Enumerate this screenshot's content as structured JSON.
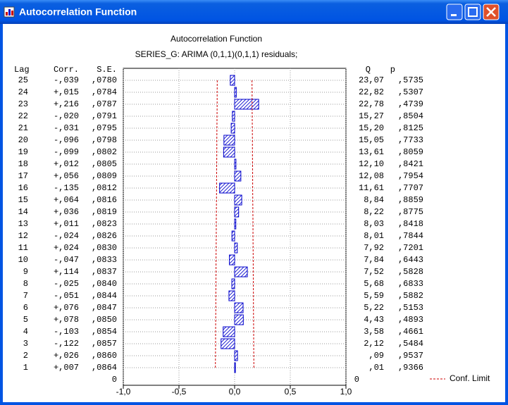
{
  "window": {
    "title": "Autocorrelation Function"
  },
  "chart_data": {
    "type": "bar",
    "orientation": "horizontal",
    "title": "Autocorrelation Function",
    "subtitle": "SERIES_G: ARIMA (0,1,1)(0,1,1) residuals;",
    "column_headers": {
      "lag": "Lag",
      "corr": "Corr.",
      "se": "S.E.",
      "q": "Q",
      "p": "p"
    },
    "x": [
      1,
      2,
      3,
      4,
      5,
      6,
      7,
      8,
      9,
      10,
      11,
      12,
      13,
      14,
      15,
      16,
      17,
      18,
      19,
      20,
      21,
      22,
      23,
      24,
      25
    ],
    "series": [
      {
        "color": "#0000cc",
        "values": [
          0.007,
          0.026,
          -0.122,
          -0.103,
          0.078,
          0.076,
          -0.051,
          -0.025,
          0.114,
          -0.047,
          0.024,
          -0.024,
          0.011,
          0.036,
          0.064,
          -0.135,
          0.056,
          0.012,
          -0.099,
          -0.096,
          -0.031,
          -0.02,
          0.216,
          0.015,
          -0.039
        ],
        "value_labels": [
          "+,007",
          "+,026",
          "-,122",
          "-,103",
          "+,078",
          "+,076",
          "-,051",
          "-,025",
          "+,114",
          "-,047",
          "+,024",
          "-,024",
          "+,011",
          "+,036",
          "+,064",
          "-,135",
          "+,056",
          "+,012",
          "-,099",
          "-,096",
          "-,031",
          "-,020",
          "+,216",
          "+,015",
          "-,039"
        ]
      }
    ],
    "se": [
      ",0864",
      ",0860",
      ",0857",
      ",0854",
      ",0850",
      ",0847",
      ",0844",
      ",0840",
      ",0837",
      ",0833",
      ",0830",
      ",0826",
      ",0823",
      ",0819",
      ",0816",
      ",0812",
      ",0809",
      ",0805",
      ",0802",
      ",0798",
      ",0795",
      ",0791",
      ",0787",
      ",0784",
      ",0780"
    ],
    "q": [
      ",01",
      ",09",
      "2,12",
      "3,58",
      "4,43",
      "5,22",
      "5,59",
      "5,68",
      "7,52",
      "7,84",
      "7,92",
      "8,01",
      "8,03",
      "8,22",
      "8,84",
      "11,61",
      "12,08",
      "12,10",
      "13,61",
      "15,05",
      "15,20",
      "15,27",
      "22,78",
      "22,82",
      "23,07"
    ],
    "p": [
      ",9366",
      ",9537",
      ",5484",
      ",4661",
      ",4893",
      ",5153",
      ",5882",
      ",6833",
      ",5828",
      ",6443",
      ",7201",
      ",7844",
      ",8418",
      ",8775",
      ",8859",
      ",7707",
      ",7954",
      ",8421",
      ",8059",
      ",7733",
      ",8125",
      ",8504",
      ",4739",
      ",5307",
      ",5735"
    ],
    "conf_limit": {
      "name": "Conf. Limit",
      "color": "#cc0000",
      "upper": [
        0.173,
        0.172,
        0.171,
        0.171,
        0.17,
        0.169,
        0.169,
        0.168,
        0.167,
        0.167,
        0.166,
        0.165,
        0.165,
        0.164,
        0.163,
        0.162,
        0.162,
        0.161,
        0.16,
        0.16,
        0.159,
        0.158,
        0.157,
        0.157,
        0.156
      ],
      "lower": [
        -0.173,
        -0.172,
        -0.171,
        -0.171,
        -0.17,
        -0.169,
        -0.169,
        -0.168,
        -0.167,
        -0.167,
        -0.166,
        -0.165,
        -0.165,
        -0.164,
        -0.163,
        -0.162,
        -0.162,
        -0.161,
        -0.16,
        -0.16,
        -0.159,
        -0.158,
        -0.157,
        -0.157,
        -0.156
      ]
    },
    "xlim": [
      -1,
      1
    ],
    "xticks": [
      {
        "value": -1,
        "label": "-1,0"
      },
      {
        "value": -0.5,
        "label": "-0,5"
      },
      {
        "value": 0,
        "label": "0,0"
      },
      {
        "value": 0.5,
        "label": "0,5"
      },
      {
        "value": 1,
        "label": "1,0"
      }
    ],
    "ylim": [
      0,
      26
    ],
    "yticks": [
      0
    ],
    "grid": true,
    "legend": "bottom-right"
  }
}
